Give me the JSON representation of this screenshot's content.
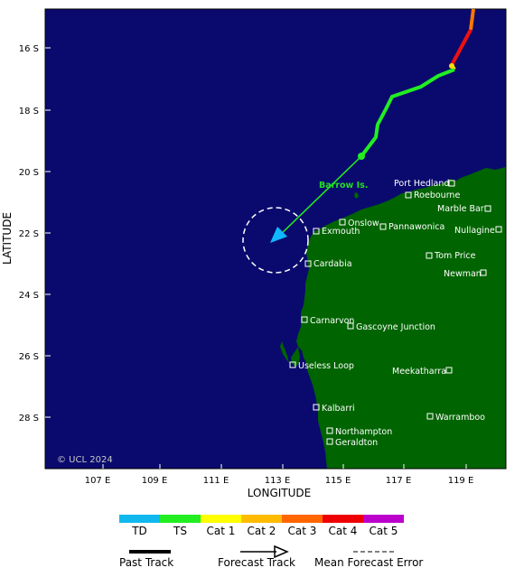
{
  "map": {
    "x_axis_label": "LONGITUDE",
    "y_axis_label": "LATITUDE",
    "lon_ticks": [
      "107 E",
      "109 E",
      "111 E",
      "113 E",
      "115 E",
      "117 E",
      "119 E"
    ],
    "lat_ticks": [
      "16 S",
      "18 S",
      "20 S",
      "22 S",
      "24 S",
      "26 S",
      "28 S"
    ],
    "copyright": "© UCL 2024",
    "island_label": "Barrow Is.",
    "colors": {
      "ocean": "#0a0a6e",
      "land": "#006400",
      "past_track_ts": "#22ee22",
      "past_track_cat1": "#ffdd00",
      "past_track_cat4": "#ee1111",
      "past_track_cat3": "#ff7700",
      "forecast_arrow": "#10b8ff",
      "error_circle": "#ffffff"
    },
    "places": [
      {
        "name": "Port Hedland"
      },
      {
        "name": "Roebourne"
      },
      {
        "name": "Marble Bar"
      },
      {
        "name": "Onslow"
      },
      {
        "name": "Pannawonica"
      },
      {
        "name": "Nullagine"
      },
      {
        "name": "Exmouth"
      },
      {
        "name": "Tom Price"
      },
      {
        "name": "Cardabia"
      },
      {
        "name": "Newman"
      },
      {
        "name": "Carnarvon"
      },
      {
        "name": "Gascoyne Junction"
      },
      {
        "name": "Useless Loop"
      },
      {
        "name": "Meekatharra"
      },
      {
        "name": "Kalbarri"
      },
      {
        "name": "Warramboo"
      },
      {
        "name": "Northampton"
      },
      {
        "name": "Geraldton"
      }
    ]
  },
  "legend": {
    "categories": [
      {
        "label": "TD",
        "color": "#10b8ee"
      },
      {
        "label": "TS",
        "color": "#22ee22"
      },
      {
        "label": "Cat 1",
        "color": "#ffff00"
      },
      {
        "label": "Cat 2",
        "color": "#ffbb00"
      },
      {
        "label": "Cat 3",
        "color": "#ff6600"
      },
      {
        "label": "Cat 4",
        "color": "#ee0000"
      },
      {
        "label": "Cat 5",
        "color": "#bb00cc"
      }
    ],
    "past_track_label": "Past Track",
    "forecast_track_label": "Forecast Track",
    "error_label": "Mean Forecast Error"
  }
}
